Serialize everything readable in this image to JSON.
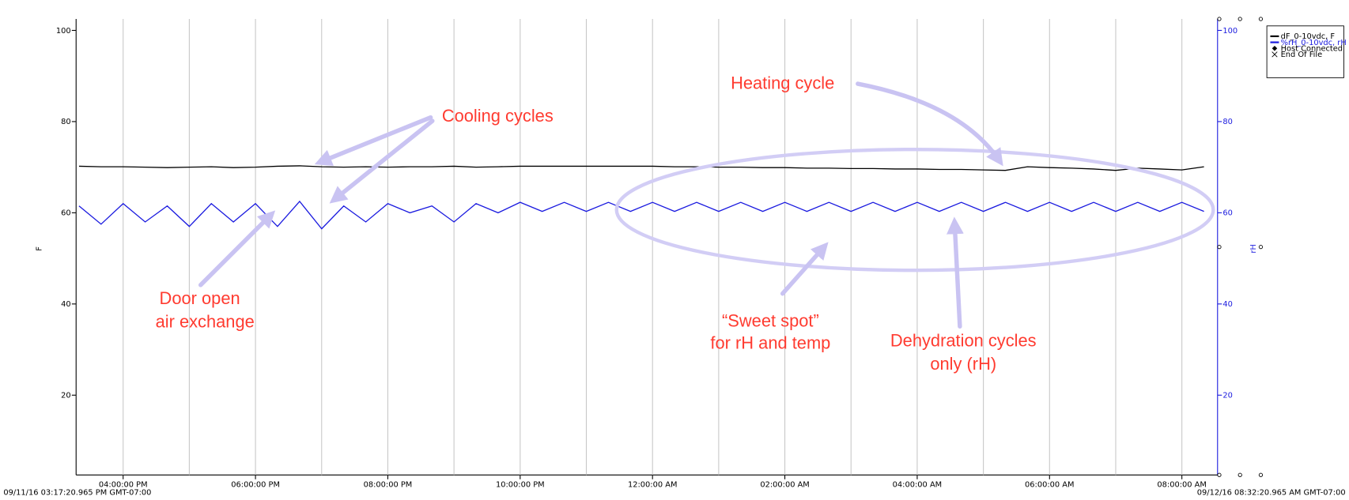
{
  "chart_data": {
    "type": "line",
    "x": [
      "2016-09-11T15:20",
      "2016-09-11T15:40",
      "2016-09-11T16:00",
      "2016-09-11T16:20",
      "2016-09-11T16:40",
      "2016-09-11T17:00",
      "2016-09-11T17:20",
      "2016-09-11T17:40",
      "2016-09-11T18:00",
      "2016-09-11T18:20",
      "2016-09-11T18:40",
      "2016-09-11T19:00",
      "2016-09-11T19:20",
      "2016-09-11T19:40",
      "2016-09-11T20:00",
      "2016-09-11T20:20",
      "2016-09-11T20:40",
      "2016-09-11T21:00",
      "2016-09-11T21:20",
      "2016-09-11T21:40",
      "2016-09-11T22:00",
      "2016-09-11T22:20",
      "2016-09-11T22:40",
      "2016-09-11T23:00",
      "2016-09-11T23:20",
      "2016-09-11T23:40",
      "2016-09-12T00:00",
      "2016-09-12T00:20",
      "2016-09-12T00:40",
      "2016-09-12T01:00",
      "2016-09-12T01:20",
      "2016-09-12T01:40",
      "2016-09-12T02:00",
      "2016-09-12T02:20",
      "2016-09-12T02:40",
      "2016-09-12T03:00",
      "2016-09-12T03:20",
      "2016-09-12T03:40",
      "2016-09-12T04:00",
      "2016-09-12T04:20",
      "2016-09-12T04:40",
      "2016-09-12T05:00",
      "2016-09-12T05:20",
      "2016-09-12T05:40",
      "2016-09-12T06:00",
      "2016-09-12T06:20",
      "2016-09-12T06:40",
      "2016-09-12T07:00",
      "2016-09-12T07:20",
      "2016-09-12T07:40",
      "2016-09-12T08:00",
      "2016-09-12T08:20"
    ],
    "series": [
      {
        "name": "dF_0-10vdc, F",
        "color": "#000000",
        "values": [
          70.2,
          70.1,
          70.1,
          70.0,
          69.9,
          70.0,
          70.1,
          69.9,
          70.0,
          70.2,
          70.3,
          70.1,
          70.0,
          70.1,
          70.0,
          70.1,
          70.1,
          70.2,
          70.0,
          70.1,
          70.2,
          70.2,
          70.2,
          70.2,
          70.2,
          70.2,
          70.2,
          70.1,
          70.1,
          70.0,
          70.0,
          69.9,
          69.9,
          69.8,
          69.8,
          69.7,
          69.7,
          69.6,
          69.6,
          69.5,
          69.5,
          69.4,
          69.3,
          70.1,
          69.9,
          69.8,
          69.6,
          69.3,
          69.8,
          69.6,
          69.4,
          70.1
        ]
      },
      {
        "name": "%rH_0-10vdc, rH",
        "color": "#1a1adf",
        "axis": "y2",
        "values": [
          61.5,
          57.5,
          62,
          58,
          61.5,
          57,
          62,
          58,
          62,
          57,
          62.5,
          56.5,
          61.5,
          58,
          62,
          60,
          61.5,
          58,
          62,
          60,
          62.3,
          60.3,
          62.3,
          60.3,
          62.3,
          60.3,
          62.3,
          60.3,
          62.3,
          60.3,
          62.3,
          60.3,
          62.3,
          60.3,
          62.3,
          60.3,
          62.3,
          60.3,
          62.3,
          60.3,
          62.3,
          60.3,
          62.3,
          60.3,
          62.3,
          60.3,
          62.3,
          60.3,
          62.3,
          60.3,
          62.3,
          60.3
        ]
      }
    ],
    "legend_extra": [
      "Host Connected",
      "End Of File"
    ],
    "ylabel": "F",
    "y2label": "rH",
    "xlim": [
      {
        "value": "2016-09-11T15:17:20.965",
        "label": "09/11/16 03:17:20.965 PM GMT-07:00"
      },
      {
        "value": "2016-09-12T08:32:20.965",
        "label": "09/12/16 08:32:20.965 AM GMT-07:00"
      }
    ],
    "xticks": [
      {
        "value": "2016-09-11T16:00",
        "label": "04:00:00 PM"
      },
      {
        "value": "2016-09-11T18:00",
        "label": "06:00:00 PM"
      },
      {
        "value": "2016-09-11T20:00",
        "label": "08:00:00 PM"
      },
      {
        "value": "2016-09-11T22:00",
        "label": "10:00:00 PM"
      },
      {
        "value": "2016-09-12T00:00",
        "label": "12:00:00 AM"
      },
      {
        "value": "2016-09-12T02:00",
        "label": "02:00:00 AM"
      },
      {
        "value": "2016-09-12T04:00",
        "label": "04:00:00 AM"
      },
      {
        "value": "2016-09-12T06:00",
        "label": "06:00:00 AM"
      },
      {
        "value": "2016-09-12T08:00",
        "label": "08:00:00 AM"
      }
    ],
    "xgrid": [
      "2016-09-11T17:00",
      "2016-09-11T19:00",
      "2016-09-11T21:00",
      "2016-09-11T23:00",
      "2016-09-12T01:00",
      "2016-09-12T03:00",
      "2016-09-12T05:00",
      "2016-09-12T07:00"
    ],
    "ylim": [
      2.5,
      102.5
    ],
    "yticks": [
      20,
      40,
      60,
      80,
      100
    ],
    "y2lim": [
      2.5,
      102.5
    ],
    "y2ticks": [
      20,
      40,
      60,
      80,
      100
    ],
    "grid": true,
    "annotations": {
      "cooling": [
        "Cooling cycles"
      ],
      "heating": [
        "Heating cycle"
      ],
      "door": [
        "Door open",
        "air exchange"
      ],
      "sweet": [
        "“Sweet spot”",
        "for rH and temp"
      ],
      "dehydration": [
        "Dehydration cycles",
        "only (rH)"
      ]
    }
  }
}
